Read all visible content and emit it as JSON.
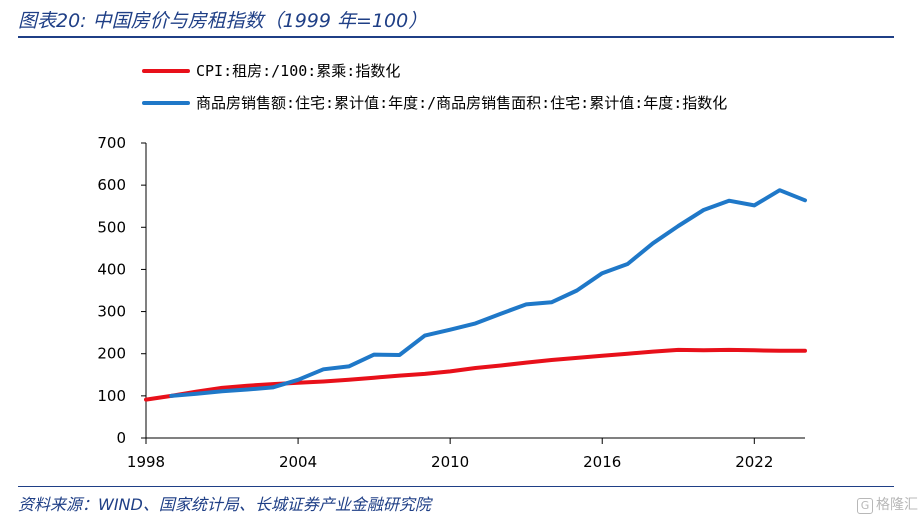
{
  "header": {
    "title": "图表20:  中国房价与房租指数（1999 年=100）"
  },
  "footer": {
    "source": "资料来源：WIND、国家统计局、长城证券产业金融研究院",
    "watermark": "格隆汇"
  },
  "colors": {
    "cpi": "#e8101a",
    "sales": "#1f78c8",
    "brand": "#1f3f86"
  },
  "chart_data": {
    "type": "line",
    "title": "",
    "xlabel": "",
    "ylabel": "",
    "xlim": [
      1998,
      2024
    ],
    "ylim": [
      0,
      700
    ],
    "x_ticks": [
      "1998",
      "2004",
      "2010",
      "2016",
      "2022"
    ],
    "y_ticks": [
      "0",
      "100",
      "200",
      "300",
      "400",
      "500",
      "600",
      "700"
    ],
    "grid": false,
    "legend_position": "top-left",
    "series": [
      {
        "name": "CPI:租房:/100:累乘:指数化",
        "color": "#e8101a",
        "x": [
          1998,
          1999,
          2000,
          2001,
          2002,
          2003,
          2004,
          2005,
          2006,
          2007,
          2008,
          2009,
          2010,
          2011,
          2012,
          2013,
          2014,
          2015,
          2016,
          2017,
          2018,
          2019,
          2020,
          2021,
          2022,
          2023,
          2024
        ],
        "values": [
          91,
          100,
          110,
          119,
          124,
          128,
          131,
          134,
          138,
          143,
          148,
          152,
          158,
          166,
          172,
          179,
          185,
          190,
          195,
          200,
          205,
          209,
          208,
          209,
          208,
          207,
          207
        ]
      },
      {
        "name": "商品房销售额:住宅:累计值:年度:/商品房销售面积:住宅:累计值:年度:指数化",
        "color": "#1f78c8",
        "x": [
          1999,
          2000,
          2001,
          2002,
          2003,
          2004,
          2005,
          2006,
          2007,
          2008,
          2009,
          2010,
          2011,
          2012,
          2013,
          2014,
          2015,
          2016,
          2017,
          2018,
          2019,
          2020,
          2021,
          2022,
          2023,
          2024
        ],
        "values": [
          100,
          105,
          111,
          115,
          120,
          138,
          163,
          170,
          198,
          197,
          243,
          257,
          272,
          295,
          317,
          322,
          350,
          391,
          413,
          462,
          503,
          541,
          563,
          552,
          588,
          564
        ]
      }
    ]
  }
}
